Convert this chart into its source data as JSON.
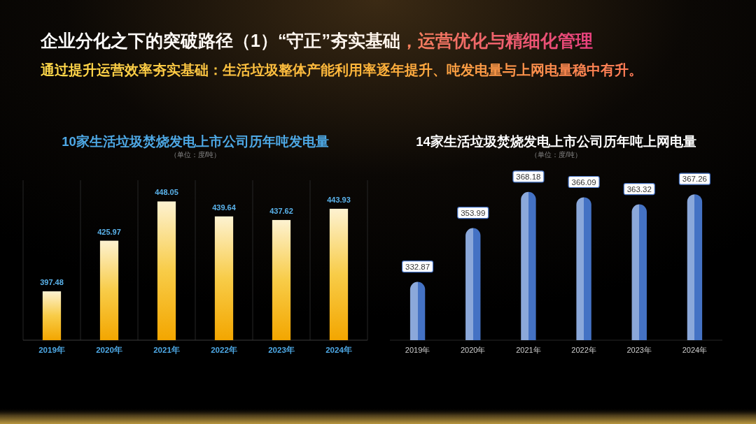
{
  "chart_data": [
    {
      "type": "other",
      "title": "企业分化之下的突破路径（1）“守正”夯实基础，运营优化与精细化管理",
      "subtitle": "通过提升运营效率夯实基础：生活垃圾整体产能利用率逐年提升、吨发电量与上网电量稳中有升。"
    },
    {
      "type": "bar",
      "title": "10家生活垃圾焚烧发电上市公司历年吨发电量",
      "subtitle": "（单位：度/吨）",
      "categories": [
        "2019年",
        "2020年",
        "2021年",
        "2022年",
        "2023年",
        "2024年"
      ],
      "values": [
        397.48,
        425.97,
        448.05,
        439.64,
        437.62,
        443.93
      ],
      "color": "#f8cc48",
      "ylim": [
        370,
        460
      ],
      "data_labels": true,
      "grid": "x"
    },
    {
      "type": "bar",
      "title": "14家生活垃圾焚烧发电上市公司历年吨上网电量",
      "subtitle": "（单位：度/吨）",
      "categories": [
        "2019年",
        "2020年",
        "2021年",
        "2022年",
        "2023年",
        "2024年"
      ],
      "values": [
        332.87,
        353.99,
        368.18,
        366.09,
        363.32,
        367.26
      ],
      "color": "#4472c4",
      "ylim": [
        310,
        375
      ],
      "data_labels": true
    }
  ]
}
